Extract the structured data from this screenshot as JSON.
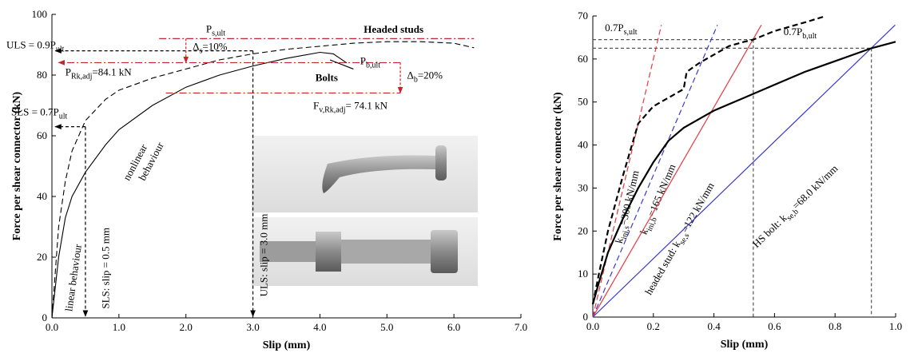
{
  "chart_data": [
    {
      "type": "line",
      "x_label": "Slip (mm)",
      "y_label": "Force per shear connector  (kN)",
      "xlim": [
        0,
        7
      ],
      "ylim": [
        0,
        100
      ],
      "xticks": [
        {
          "value": 0,
          "label": "0.0"
        },
        {
          "value": 1,
          "label": "1.0"
        },
        {
          "value": 2,
          "label": "2.0"
        },
        {
          "value": 3,
          "label": "3.0"
        },
        {
          "value": 4,
          "label": "4.0"
        },
        {
          "value": 5,
          "label": "5.0"
        },
        {
          "value": 6,
          "label": "6.0"
        },
        {
          "value": 7,
          "label": "7.0"
        }
      ],
      "yticks": [
        0,
        20,
        40,
        60,
        80,
        100
      ],
      "series": [
        {
          "name": "Headed studs",
          "color": "#000000",
          "dash": "dashed",
          "x": [
            0,
            0.1,
            0.2,
            0.3,
            0.5,
            0.8,
            1,
            1.5,
            2,
            2.5,
            3,
            3.5,
            4,
            4.5,
            5,
            5.5,
            6,
            6.3
          ],
          "values": [
            0,
            30,
            45,
            55,
            65,
            72,
            75,
            79,
            82,
            85,
            87,
            88.5,
            89.5,
            90.5,
            91,
            91,
            90.5,
            89
          ]
        },
        {
          "name": "Bolts",
          "color": "#000000",
          "dash": "solid",
          "x": [
            0,
            0.1,
            0.2,
            0.3,
            0.5,
            0.8,
            1,
            1.5,
            2,
            2.5,
            3,
            3.5,
            4,
            4.2,
            4.4
          ],
          "values": [
            0,
            20,
            33,
            40,
            48,
            57,
            62,
            70,
            76,
            80,
            83,
            85.5,
            87.5,
            87,
            84
          ]
        }
      ],
      "reference_lines": [
        {
          "y": 88
        },
        {
          "y": 63
        },
        {
          "y": 92
        },
        {
          "y": 84.1
        },
        {
          "y": 74.1
        }
      ],
      "reference_slips": [
        0.5,
        3.0
      ],
      "annotations": [
        {
          "text": "ULS = 0.9P",
          "sub": "ult"
        },
        {
          "text": "SLS = 0.7P",
          "sub": "ult"
        },
        {
          "text": "P",
          "sub": "s,ult"
        },
        {
          "text": "Δ",
          "sub": "s",
          "after": "=10%"
        },
        {
          "text": "P",
          "sub": "Rk,adj",
          "after": "=84.1 kN"
        },
        {
          "text": "P",
          "sub": "b,ult"
        },
        {
          "text": "Δ",
          "sub": "b",
          "after": "=20%"
        },
        {
          "text": "F",
          "sub": "v,Rk,adj",
          "after": "= 74.1 kN"
        },
        {
          "text": "nonlinear"
        },
        {
          "text": "behaviour"
        },
        {
          "text": "linear behaviour"
        },
        {
          "text": "SLS: slip = 0.5 mm"
        },
        {
          "text": "ULS: slip = 3.0 mm"
        }
      ]
    },
    {
      "type": "line",
      "x_label": "Slip (mm)",
      "y_label": "Force per shear connector (kN)",
      "xlim": [
        0,
        1
      ],
      "ylim": [
        0,
        70
      ],
      "xticks": [
        {
          "value": 0,
          "label": "0.0"
        },
        {
          "value": 0.2,
          "label": "0.2"
        },
        {
          "value": 0.4,
          "label": "0.4"
        },
        {
          "value": 0.6,
          "label": "0.6"
        },
        {
          "value": 0.8,
          "label": "0.8"
        },
        {
          "value": 1,
          "label": "1.0"
        }
      ],
      "yticks": [
        0,
        10,
        20,
        30,
        40,
        50,
        60,
        70
      ],
      "series": [
        {
          "color": "#000000",
          "dash": "dashed",
          "x": [
            0,
            0.02,
            0.05,
            0.1,
            0.15,
            0.2,
            0.25,
            0.3,
            0.31,
            0.35,
            0.4,
            0.45,
            0.5,
            0.53,
            0.6,
            0.7,
            0.77
          ],
          "values": [
            3,
            10,
            20,
            33,
            45,
            49,
            51,
            53,
            57,
            59,
            61,
            63,
            64,
            64.5,
            66.5,
            68.5,
            70
          ]
        },
        {
          "color": "#000000",
          "dash": "solid",
          "x": [
            0,
            0.02,
            0.05,
            0.1,
            0.15,
            0.2,
            0.25,
            0.3,
            0.4,
            0.5,
            0.6,
            0.7,
            0.8,
            0.92,
            1.0
          ],
          "values": [
            3,
            8,
            15,
            23,
            30,
            36,
            41,
            44,
            48,
            51,
            54,
            57,
            59.5,
            62.5,
            64
          ]
        }
      ],
      "stiffness_lines": [
        {
          "slope": 300,
          "color": "#e8383d",
          "dash": "dashed",
          "text": "k",
          "sub": "ini,s",
          "after": "=300 kN/mm"
        },
        {
          "slope": 165,
          "color": "#3a3ad0",
          "dash": "dashed",
          "text": "k",
          "sub": "ini,b",
          "after": "=165 kN/mm"
        },
        {
          "slope": 122,
          "color": "#e8383d",
          "dash": "solid",
          "text": "headed stud: k",
          "sub": "se,s",
          "after": "=122 kN/mm"
        },
        {
          "slope": 68,
          "color": "#3a3ad0",
          "dash": "solid",
          "text": "HS bolt: k",
          "sub": "se,b",
          "after": "=68.0 kN/mm"
        }
      ],
      "reference_points": [
        {
          "x": 0.53,
          "y": 64.5,
          "color": "#e8383d",
          "text": "0.7P",
          "sub": "s,ult"
        },
        {
          "x": 0.92,
          "y": 62.5,
          "color": "#3a3ad0",
          "text": "0.7P",
          "sub": "b,ult"
        }
      ]
    }
  ]
}
